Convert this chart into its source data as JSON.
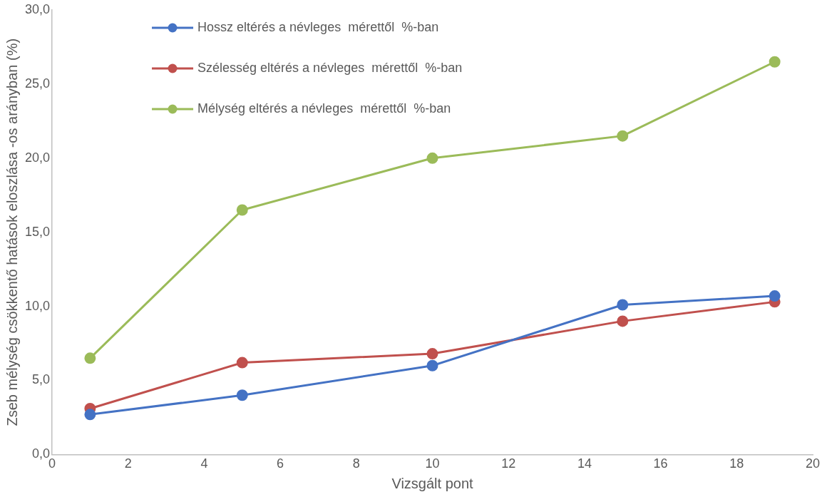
{
  "chart_data": {
    "type": "line",
    "xlabel": "Vizsgált pont",
    "ylabel": "Zseb mélység csökkentő hatások eloszlása -os arányban (%)",
    "xlim": [
      0,
      20
    ],
    "xticks": [
      0,
      2,
      4,
      6,
      8,
      10,
      12,
      14,
      16,
      18,
      20
    ],
    "ylim": [
      0,
      30
    ],
    "yticks": [
      {
        "value": 0,
        "label": "0,0"
      },
      {
        "value": 5,
        "label": "5,0"
      },
      {
        "value": 10,
        "label": "10,0"
      },
      {
        "value": 15,
        "label": "15,0"
      },
      {
        "value": 20,
        "label": "20,0"
      },
      {
        "value": 25,
        "label": "25,0"
      },
      {
        "value": 30,
        "label": "30,0"
      }
    ],
    "x": [
      1,
      5,
      10,
      15,
      19
    ],
    "series": [
      {
        "name": "Hossz eltérés a névleges  mérettől  %-ban",
        "color": "#4472c4",
        "values": [
          2.7,
          4.0,
          6.0,
          10.1,
          10.7
        ]
      },
      {
        "name": "Szélesség eltérés a névleges  mérettől  %-ban",
        "color": "#c0504d",
        "values": [
          3.1,
          6.2,
          6.8,
          9.0,
          10.3
        ]
      },
      {
        "name": "Mélység eltérés a névleges  mérettől  %-ban",
        "color": "#9bbb59",
        "values": [
          6.5,
          16.5,
          20.0,
          21.5,
          26.5
        ]
      }
    ],
    "marker": "circle",
    "line_style": "solid",
    "grid": false,
    "legend": "top left"
  }
}
